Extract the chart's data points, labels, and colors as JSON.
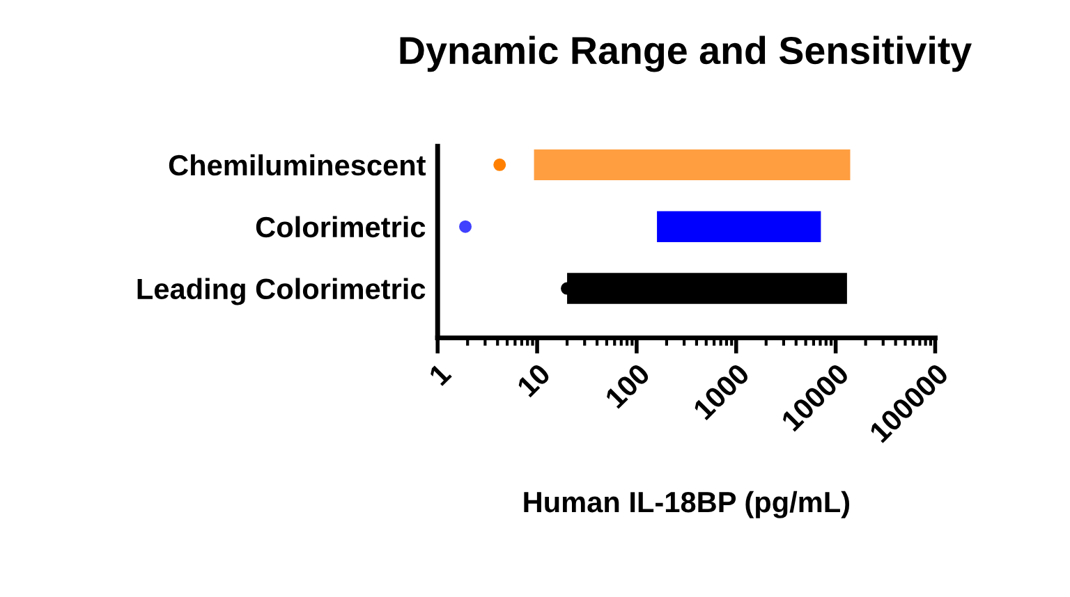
{
  "chart_data": {
    "type": "bar",
    "orientation": "horizontal",
    "title": "Dynamic Range and Sensitivity",
    "xlabel": "Human IL-18BP (pg/mL)",
    "categories": [
      "Chemiluminescent",
      "Colorimetric",
      "Leading Colorimetric"
    ],
    "log": "x",
    "xlim": [
      1,
      100000
    ],
    "xticks": [
      1,
      10,
      100,
      1000,
      10000,
      100000
    ],
    "grid": false,
    "legend": false,
    "series": [
      {
        "type": "bar",
        "base": [
          9.3,
          160,
          20
        ],
        "values": [
          13991,
          6940,
          12980
        ],
        "colors": [
          "#ff9e40",
          "#0000ff",
          "#000000"
        ]
      },
      {
        "type": "scatter",
        "x": [
          "Chemiluminescent",
          "Colorimetric",
          "Leading Colorimetric"
        ],
        "values": [
          4.2,
          1.9,
          20
        ],
        "colors": [
          "#ff8000",
          "#4040ff",
          "#000000"
        ],
        "marker": "circle"
      }
    ]
  }
}
